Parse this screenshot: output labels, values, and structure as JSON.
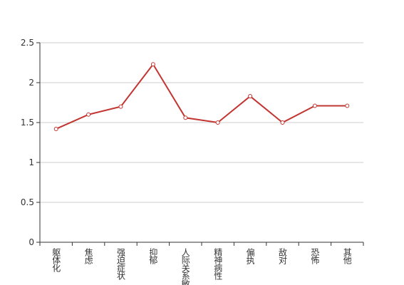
{
  "chart_data": {
    "type": "line",
    "categories": [
      "躯体化",
      "焦虑",
      "强迫症状",
      "抑郁",
      "人际关系敏感",
      "精神病性",
      "偏执",
      "敌对",
      "恐怖",
      "其他"
    ],
    "series": [
      {
        "color": "#c23531",
        "values": [
          1.42,
          1.6,
          1.7,
          2.23,
          1.56,
          1.5,
          1.83,
          1.5,
          1.71,
          1.71
        ]
      }
    ],
    "ylim": [
      0,
      2.5
    ],
    "yticks": [
      0,
      0.5,
      1,
      1.5,
      2,
      2.5
    ],
    "grid": true
  }
}
